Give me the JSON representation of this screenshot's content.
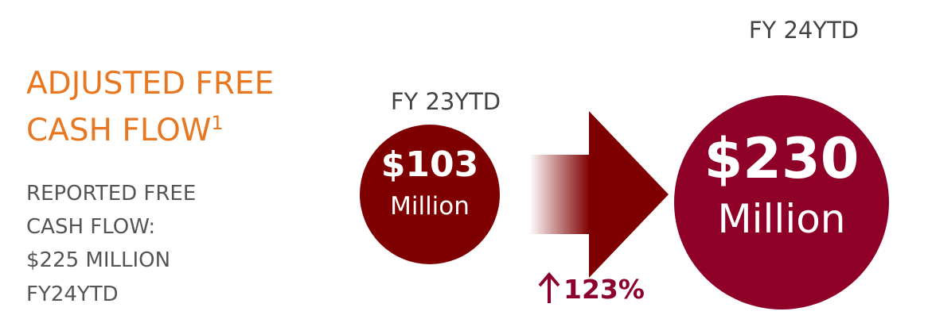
{
  "headline": {
    "title_lines": [
      "ADJUSTED FREE",
      "CASH FLOW"
    ],
    "footnote_mark": "1",
    "detail_lines": [
      "REPORTED FREE",
      "CASH FLOW:",
      "$225 MILLION",
      "FY24YTD"
    ]
  },
  "prior": {
    "period": "FY 23YTD",
    "amount": "$103",
    "unit": "Million"
  },
  "current": {
    "period": "FY 24YTD",
    "amount": "$230",
    "unit": "Million"
  },
  "change": "123%"
}
